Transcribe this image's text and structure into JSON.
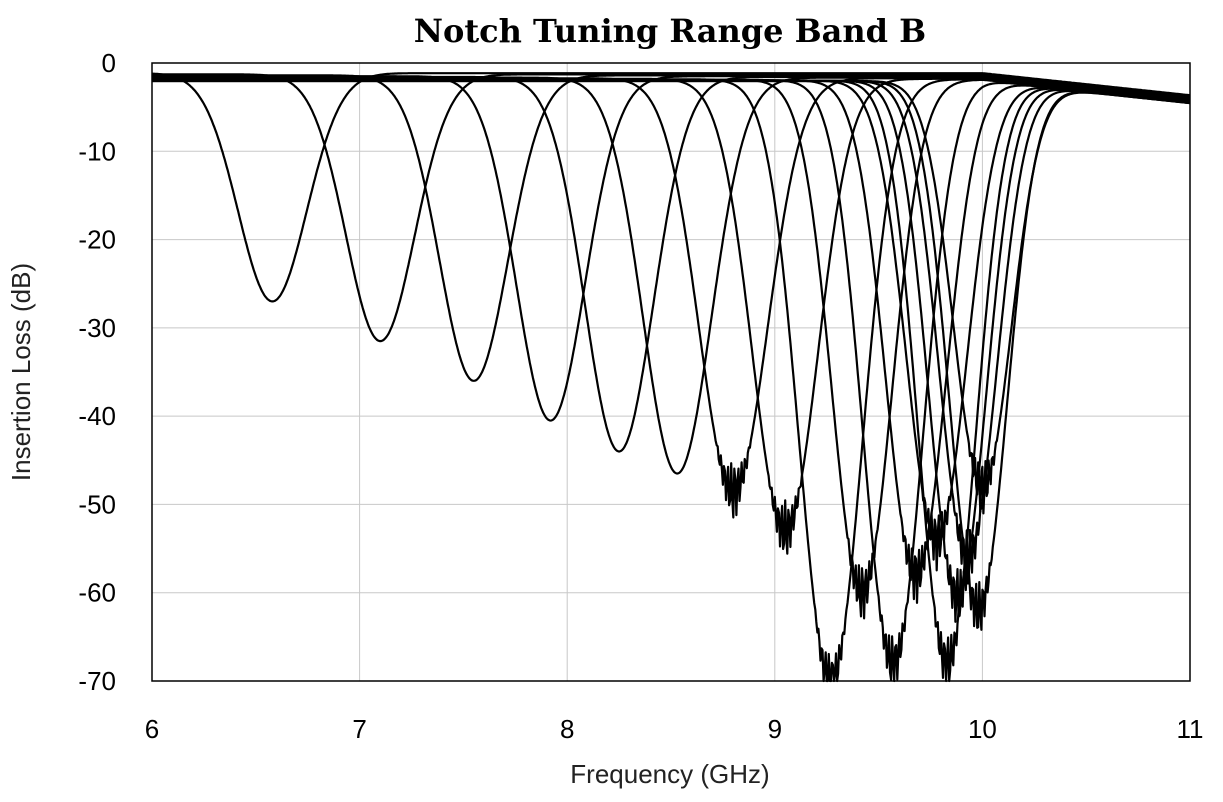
{
  "chart_data": {
    "type": "line",
    "title": "Notch Tuning Range Band B",
    "xlabel": "Frequency (GHz)",
    "ylabel": "Insertion Loss (dB)",
    "xlim": [
      6,
      11
    ],
    "ylim": [
      -70,
      0
    ],
    "xticks": [
      "6",
      "7",
      "8",
      "9",
      "10",
      "11"
    ],
    "yticks": [
      "0",
      "-10",
      "-20",
      "-30",
      "-40",
      "-50",
      "-60",
      "-70"
    ],
    "grid": true,
    "legend": "none",
    "line_color": "#000000",
    "series": [
      {
        "center": 6.58,
        "min": -27,
        "width": 0.25
      },
      {
        "center": 7.1,
        "min": -31.5,
        "width": 0.25
      },
      {
        "center": 7.55,
        "min": -36,
        "width": 0.25
      },
      {
        "center": 7.92,
        "min": -40.5,
        "width": 0.25
      },
      {
        "center": 8.25,
        "min": -44,
        "width": 0.25
      },
      {
        "center": 8.53,
        "min": -46.5,
        "width": 0.25
      },
      {
        "center": 8.8,
        "min": -48.5,
        "width": 0.25
      },
      {
        "center": 9.05,
        "min": -53,
        "width": 0.24
      },
      {
        "center": 9.27,
        "min": -70,
        "width": 0.23
      },
      {
        "center": 9.42,
        "min": -60,
        "width": 0.22
      },
      {
        "center": 9.57,
        "min": -68,
        "width": 0.22
      },
      {
        "center": 9.68,
        "min": -58,
        "width": 0.22
      },
      {
        "center": 9.78,
        "min": -54,
        "width": 0.22
      },
      {
        "center": 9.83,
        "min": -68,
        "width": 0.21
      },
      {
        "center": 9.88,
        "min": -60.5,
        "width": 0.21
      },
      {
        "center": 9.93,
        "min": -56,
        "width": 0.21
      },
      {
        "center": 9.98,
        "min": -62,
        "width": 0.21
      },
      {
        "center": 10.0,
        "min": -48,
        "width": 0.21
      }
    ]
  }
}
